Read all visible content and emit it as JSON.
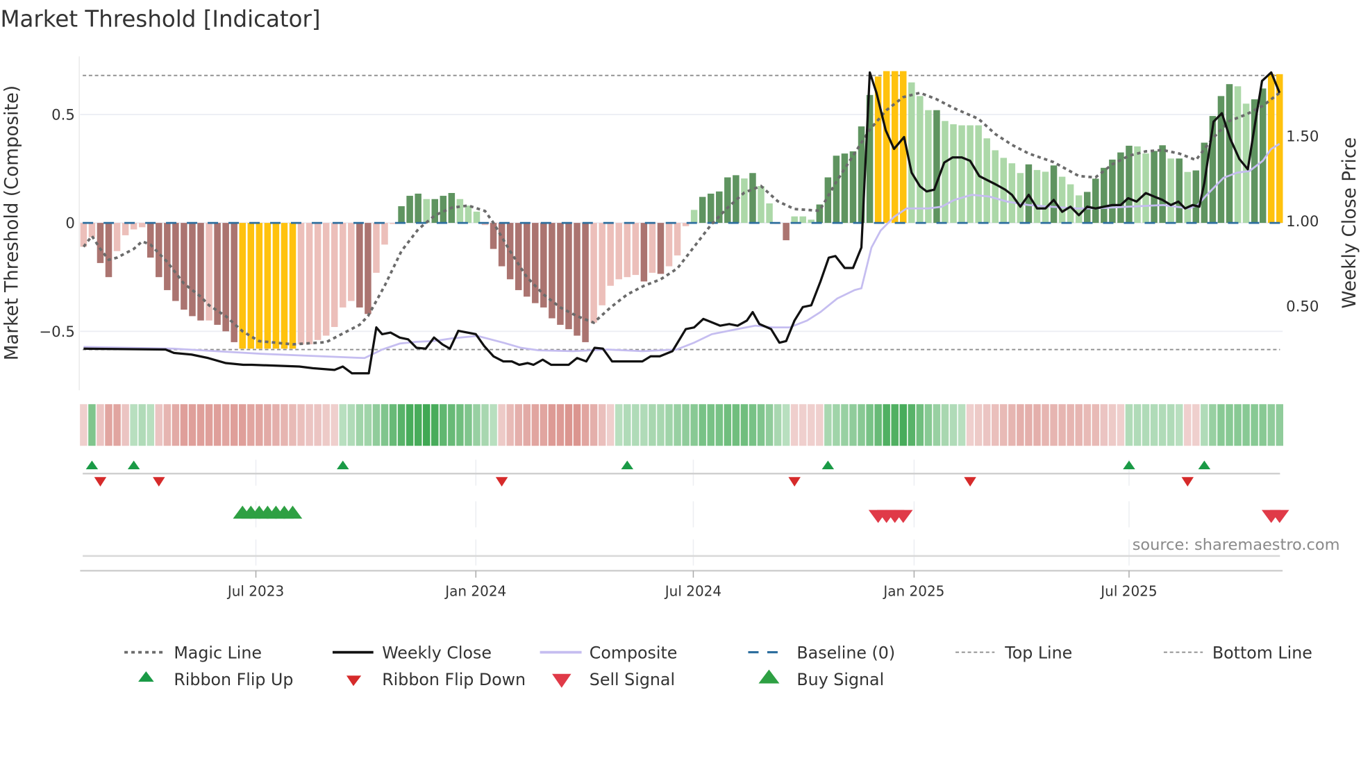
{
  "title": "Market Threshold [Indicator]",
  "source": "source: sharemaestro.com",
  "colors": {
    "bar_neg_strong": "#ab7470",
    "bar_neg_weak": "#ecbfba",
    "bar_pos_strong": "#5f9460",
    "bar_pos_weak": "#acd8a8",
    "bar_extreme": "#ffc20e",
    "magic": "#6b6b6b",
    "close": "#111111",
    "composite": "#c5bdf0",
    "baseline": "#2d6e9e",
    "thresholds": "#8c8c8c",
    "ribbon_pos": "#2ea043",
    "ribbon_neg": "#d0736c",
    "flip_up": "#1a9a46",
    "flip_down": "#d62a2a",
    "buy": "#2ea043",
    "sell": "#e03a48"
  },
  "chart_data": {
    "type": "bar",
    "title": "Market Threshold [Indicator]",
    "ylabel": "Market Threshold (Composite)",
    "y2label": "Weekly Close Price",
    "ylim": [
      -0.772,
      0.768
    ],
    "y2lim": [
      0.0,
      1.96
    ],
    "yticks": [
      {
        "v": 0.5,
        "label": "0.5"
      },
      {
        "v": 0,
        "label": "0"
      },
      {
        "v": -0.5,
        "label": "−0.5"
      }
    ],
    "y2ticks": [
      {
        "v": 1.5,
        "label": "1.50"
      },
      {
        "v": 1.0,
        "label": "1.00"
      },
      {
        "v": 0.5,
        "label": "0.50"
      }
    ],
    "xticks": [
      {
        "week": 20.6,
        "label": "Jul 2023"
      },
      {
        "week": 46.9,
        "label": "Jan 2024"
      },
      {
        "week": 72.9,
        "label": "Jul 2024"
      },
      {
        "week": 99.3,
        "label": "Jan 2025"
      },
      {
        "week": 125,
        "label": "Jul 2025"
      }
    ],
    "top_line": 0.68,
    "bottom_line": -0.584,
    "baseline": 0,
    "composite_bars": [
      -0.11,
      -0.066,
      -0.185,
      -0.25,
      -0.13,
      -0.057,
      -0.03,
      -0.02,
      -0.16,
      -0.25,
      -0.31,
      -0.36,
      -0.4,
      -0.43,
      -0.45,
      -0.45,
      -0.47,
      -0.5,
      -0.55,
      -0.58,
      -0.58,
      -0.58,
      -0.58,
      -0.58,
      -0.58,
      -0.58,
      -0.56,
      -0.56,
      -0.54,
      -0.52,
      -0.48,
      -0.39,
      -0.36,
      -0.39,
      -0.42,
      -0.23,
      -0.1,
      -0.005,
      0.077,
      0.125,
      0.135,
      0.11,
      0.11,
      0.125,
      0.138,
      0.11,
      0.08,
      0.052,
      -0.01,
      -0.12,
      -0.2,
      -0.26,
      -0.31,
      -0.34,
      -0.37,
      -0.39,
      -0.44,
      -0.47,
      -0.49,
      -0.52,
      -0.55,
      -0.46,
      -0.38,
      -0.29,
      -0.26,
      -0.25,
      -0.24,
      -0.27,
      -0.23,
      -0.235,
      -0.2,
      -0.15,
      -0.015,
      0.06,
      0.12,
      0.135,
      0.145,
      0.21,
      0.22,
      0.205,
      0.23,
      0.17,
      0.09,
      -0.005,
      -0.08,
      0.03,
      0.03,
      0.015,
      0.085,
      0.21,
      0.31,
      0.32,
      0.33,
      0.445,
      0.59,
      0.675,
      0.7,
      0.7,
      0.7,
      0.648,
      0.585,
      0.52,
      0.52,
      0.47,
      0.455,
      0.45,
      0.45,
      0.45,
      0.39,
      0.335,
      0.3,
      0.275,
      0.23,
      0.27,
      0.244,
      0.236,
      0.265,
      0.213,
      0.178,
      0.127,
      0.143,
      0.204,
      0.254,
      0.292,
      0.325,
      0.356,
      0.353,
      0.32,
      0.332,
      0.358,
      0.297,
      0.297,
      0.235,
      0.242,
      0.37,
      0.493,
      0.585,
      0.64,
      0.63,
      0.55,
      0.57,
      0.62,
      0.686,
      0.686
    ],
    "bar_tone": "LLDDLLLLDDDDDDDLDDDXXXXXXXLLLLLLLDDLLLDDDLDDDLLLLDDDDDDDDDDDDLLLLLLDLDLLLLDDDDDLDLLLDLLLDDDDDDDXXXXLLLDLLLLLLLLLLDLLDLLLDDDDDDLLDDLDLDDDDDLLDDXX",
    "magic_line": [
      [
        0,
        -0.11
      ],
      [
        1,
        -0.06
      ],
      [
        2,
        -0.12
      ],
      [
        3,
        -0.17
      ],
      [
        4,
        -0.16
      ],
      [
        6,
        -0.12
      ],
      [
        7,
        -0.085
      ],
      [
        8,
        -0.1
      ],
      [
        10,
        -0.18
      ],
      [
        12,
        -0.28
      ],
      [
        14,
        -0.34
      ],
      [
        15,
        -0.38
      ],
      [
        17,
        -0.43
      ],
      [
        19,
        -0.5
      ],
      [
        21,
        -0.545
      ],
      [
        25,
        -0.56
      ],
      [
        29,
        -0.55
      ],
      [
        31,
        -0.51
      ],
      [
        33,
        -0.47
      ],
      [
        34,
        -0.43
      ],
      [
        36,
        -0.29
      ],
      [
        38,
        -0.13
      ],
      [
        40,
        -0.03
      ],
      [
        42,
        0.035
      ],
      [
        44,
        0.07
      ],
      [
        46,
        0.08
      ],
      [
        48,
        0.055
      ],
      [
        49,
        0
      ],
      [
        51,
        -0.13
      ],
      [
        53,
        -0.25
      ],
      [
        55,
        -0.33
      ],
      [
        57,
        -0.39
      ],
      [
        59,
        -0.43
      ],
      [
        61,
        -0.46
      ],
      [
        63,
        -0.39
      ],
      [
        65,
        -0.33
      ],
      [
        67,
        -0.29
      ],
      [
        69,
        -0.26
      ],
      [
        71,
        -0.21
      ],
      [
        73,
        -0.11
      ],
      [
        75,
        -0.01
      ],
      [
        77,
        0.07
      ],
      [
        79,
        0.14
      ],
      [
        81,
        0.17
      ],
      [
        83,
        0.1
      ],
      [
        85,
        0.064
      ],
      [
        88,
        0.056
      ],
      [
        90,
        0.19
      ],
      [
        92,
        0.31
      ],
      [
        94,
        0.43
      ],
      [
        96,
        0.52
      ],
      [
        98,
        0.58
      ],
      [
        100,
        0.6
      ],
      [
        102,
        0.57
      ],
      [
        104,
        0.53
      ],
      [
        107,
        0.48
      ],
      [
        109,
        0.41
      ],
      [
        111,
        0.36
      ],
      [
        113,
        0.32
      ],
      [
        116,
        0.28
      ],
      [
        119,
        0.216
      ],
      [
        121,
        0.21
      ],
      [
        123,
        0.27
      ],
      [
        125,
        0.31
      ],
      [
        127,
        0.33
      ],
      [
        129,
        0.336
      ],
      [
        131,
        0.32
      ],
      [
        133,
        0.29
      ],
      [
        135,
        0.39
      ],
      [
        137,
        0.47
      ],
      [
        139,
        0.5
      ],
      [
        141,
        0.54
      ],
      [
        143,
        0.6
      ]
    ],
    "weekly_close": [
      [
        0,
        0.245
      ],
      [
        9.8,
        0.24
      ],
      [
        10.8,
        0.22
      ],
      [
        12.9,
        0.21
      ],
      [
        14.9,
        0.19
      ],
      [
        17,
        0.16
      ],
      [
        19.1,
        0.15
      ],
      [
        20.1,
        0.15
      ],
      [
        25.8,
        0.14
      ],
      [
        27.4,
        0.13
      ],
      [
        30,
        0.12
      ],
      [
        31,
        0.14
      ],
      [
        32.1,
        0.1
      ],
      [
        34.1,
        0.1
      ],
      [
        35,
        0.37
      ],
      [
        35.7,
        0.33
      ],
      [
        36.7,
        0.34
      ],
      [
        37.8,
        0.31
      ],
      [
        38.8,
        0.3
      ],
      [
        39.8,
        0.25
      ],
      [
        40.9,
        0.245
      ],
      [
        41.9,
        0.31
      ],
      [
        42.9,
        0.27
      ],
      [
        43.8,
        0.245
      ],
      [
        44.8,
        0.35
      ],
      [
        46.9,
        0.33
      ],
      [
        47.9,
        0.26
      ],
      [
        49,
        0.2
      ],
      [
        50.2,
        0.17
      ],
      [
        51.2,
        0.17
      ],
      [
        52.1,
        0.15
      ],
      [
        53.1,
        0.16
      ],
      [
        53.8,
        0.15
      ],
      [
        54.9,
        0.18
      ],
      [
        55.9,
        0.15
      ],
      [
        58,
        0.15
      ],
      [
        59,
        0.19
      ],
      [
        60.1,
        0.17
      ],
      [
        61.1,
        0.25
      ],
      [
        62.1,
        0.245
      ],
      [
        63.2,
        0.17
      ],
      [
        64.5,
        0.17
      ],
      [
        65.6,
        0.17
      ],
      [
        66.8,
        0.17
      ],
      [
        67.8,
        0.2
      ],
      [
        68.9,
        0.2
      ],
      [
        70.4,
        0.23
      ],
      [
        72,
        0.36
      ],
      [
        73,
        0.37
      ],
      [
        74.1,
        0.42
      ],
      [
        75.1,
        0.4
      ],
      [
        76.1,
        0.38
      ],
      [
        77.2,
        0.39
      ],
      [
        78.2,
        0.38
      ],
      [
        79.3,
        0.41
      ],
      [
        80,
        0.46
      ],
      [
        80.8,
        0.39
      ],
      [
        82.2,
        0.36
      ],
      [
        83.2,
        0.28
      ],
      [
        84,
        0.29
      ],
      [
        85,
        0.41
      ],
      [
        86,
        0.49
      ],
      [
        87,
        0.5
      ],
      [
        88.1,
        0.64
      ],
      [
        89.1,
        0.78
      ],
      [
        89.9,
        0.79
      ],
      [
        91,
        0.72
      ],
      [
        92,
        0.72
      ],
      [
        93,
        0.84
      ],
      [
        94,
        1.87
      ],
      [
        94.8,
        1.75
      ],
      [
        95.9,
        1.53
      ],
      [
        96.9,
        1.42
      ],
      [
        98.1,
        1.49
      ],
      [
        99,
        1.28
      ],
      [
        100,
        1.2
      ],
      [
        100.8,
        1.17
      ],
      [
        101.7,
        1.18
      ],
      [
        102.9,
        1.34
      ],
      [
        103.9,
        1.37
      ],
      [
        105,
        1.37
      ],
      [
        106,
        1.35
      ],
      [
        107.1,
        1.26
      ],
      [
        109.1,
        1.21
      ],
      [
        110.2,
        1.18
      ],
      [
        111,
        1.15
      ],
      [
        112,
        1.08
      ],
      [
        113,
        1.15
      ],
      [
        114,
        1.07
      ],
      [
        115,
        1.07
      ],
      [
        116,
        1.12
      ],
      [
        117,
        1.05
      ],
      [
        118,
        1.08
      ],
      [
        119,
        1.03
      ],
      [
        120,
        1.08
      ],
      [
        121,
        1.07
      ],
      [
        122,
        1.08
      ],
      [
        123,
        1.09
      ],
      [
        124,
        1.09
      ],
      [
        124.9,
        1.13
      ],
      [
        125.9,
        1.11
      ],
      [
        127,
        1.16
      ],
      [
        128,
        1.14
      ],
      [
        129,
        1.12
      ],
      [
        130,
        1.09
      ],
      [
        130.9,
        1.11
      ],
      [
        131.7,
        1.07
      ],
      [
        132.6,
        1.09
      ],
      [
        133.4,
        1.08
      ],
      [
        134,
        1.22
      ],
      [
        135.1,
        1.58
      ],
      [
        136.1,
        1.63
      ],
      [
        137.1,
        1.48
      ],
      [
        138.2,
        1.36
      ],
      [
        139.2,
        1.3
      ],
      [
        140.1,
        1.58
      ],
      [
        140.9,
        1.82
      ],
      [
        142,
        1.87
      ],
      [
        143,
        1.75
      ]
    ],
    "composite_line": [
      [
        0,
        0.255
      ],
      [
        10.8,
        0.245
      ],
      [
        21.2,
        0.215
      ],
      [
        33.6,
        0.19
      ],
      [
        35.7,
        0.24
      ],
      [
        37.8,
        0.275
      ],
      [
        39.8,
        0.285
      ],
      [
        41.9,
        0.29
      ],
      [
        44,
        0.305
      ],
      [
        47.1,
        0.32
      ],
      [
        50.2,
        0.28
      ],
      [
        52.3,
        0.25
      ],
      [
        54.4,
        0.235
      ],
      [
        58.5,
        0.23
      ],
      [
        62.7,
        0.24
      ],
      [
        66.8,
        0.23
      ],
      [
        70.9,
        0.24
      ],
      [
        73,
        0.28
      ],
      [
        75.1,
        0.33
      ],
      [
        78.2,
        0.36
      ],
      [
        80.3,
        0.38
      ],
      [
        82.4,
        0.37
      ],
      [
        84.4,
        0.37
      ],
      [
        86.5,
        0.41
      ],
      [
        88.1,
        0.46
      ],
      [
        90.1,
        0.54
      ],
      [
        92.2,
        0.59
      ],
      [
        93,
        0.6
      ],
      [
        94.2,
        0.84
      ],
      [
        95.3,
        0.94
      ],
      [
        96.9,
        1.02
      ],
      [
        98.4,
        1.07
      ],
      [
        101,
        1.07
      ],
      [
        102.6,
        1.08
      ],
      [
        104.1,
        1.12
      ],
      [
        106.2,
        1.15
      ],
      [
        108.3,
        1.14
      ],
      [
        110.4,
        1.11
      ],
      [
        113,
        1.09
      ],
      [
        115.6,
        1.08
      ],
      [
        118.7,
        1.07
      ],
      [
        120.8,
        1.07
      ],
      [
        124.9,
        1.08
      ],
      [
        129.1,
        1.09
      ],
      [
        132.2,
        1.07
      ],
      [
        133.2,
        1.09
      ],
      [
        134.3,
        1.15
      ],
      [
        136.3,
        1.25
      ],
      [
        137.9,
        1.28
      ],
      [
        139.4,
        1.29
      ],
      [
        141,
        1.35
      ],
      [
        142,
        1.42
      ],
      [
        143,
        1.45
      ]
    ],
    "ribbon": [
      -0.2,
      0.55,
      -0.3,
      -0.6,
      -0.6,
      -0.3,
      0.2,
      0.25,
      0.2,
      -0.3,
      -0.45,
      -0.55,
      -0.65,
      -0.65,
      -0.65,
      -0.65,
      -0.65,
      -0.6,
      -0.65,
      -0.65,
      -0.6,
      -0.6,
      -0.55,
      -0.5,
      -0.45,
      -0.4,
      -0.35,
      -0.3,
      -0.3,
      -0.25,
      -0.2,
      0.2,
      0.25,
      0.35,
      0.35,
      0.45,
      0.55,
      0.7,
      0.8,
      0.9,
      0.9,
      0.95,
      0.9,
      0.75,
      0.7,
      0.65,
      0.55,
      0.4,
      0.3,
      0.2,
      -0.25,
      -0.4,
      -0.5,
      -0.55,
      -0.6,
      -0.6,
      -0.7,
      -0.7,
      -0.75,
      -0.75,
      -0.6,
      -0.5,
      -0.35,
      -0.2,
      0.2,
      0.25,
      0.25,
      0.25,
      0.3,
      0.3,
      0.35,
      0.4,
      0.45,
      0.5,
      0.6,
      0.6,
      0.6,
      0.65,
      0.65,
      0.65,
      0.6,
      0.55,
      0.45,
      0.3,
      0.2,
      -0.2,
      -0.2,
      -0.2,
      -0.2,
      0.3,
      0.35,
      0.4,
      0.45,
      0.5,
      0.6,
      0.7,
      0.85,
      0.85,
      0.9,
      0.8,
      0.65,
      0.5,
      0.4,
      0.3,
      0.25,
      0.2,
      -0.2,
      -0.25,
      -0.3,
      -0.35,
      -0.4,
      -0.45,
      -0.5,
      -0.5,
      -0.5,
      -0.45,
      -0.45,
      -0.45,
      -0.45,
      -0.45,
      -0.4,
      -0.4,
      -0.3,
      -0.25,
      -0.2,
      0.25,
      0.25,
      0.25,
      0.25,
      0.25,
      0.25,
      0.2,
      -0.2,
      -0.2,
      0.25,
      0.4,
      0.5,
      0.5,
      0.5,
      0.5,
      0.5,
      0.5,
      0.45,
      0.45
    ],
    "ribbon_flip_up": [
      1,
      6,
      31,
      65,
      89,
      125,
      134
    ],
    "ribbon_flip_down": [
      2,
      9,
      50,
      85,
      106,
      132
    ],
    "buy_signal": [
      19,
      20,
      21,
      22,
      23,
      24,
      25
    ],
    "sell_signal": [
      95,
      96,
      97,
      98,
      142,
      143
    ]
  },
  "legend": {
    "magic": "Magic Line",
    "close": "Weekly Close",
    "composite": "Composite",
    "baseline": "Baseline (0)",
    "top": "Top Line",
    "bottom": "Bottom Line",
    "flip_up": "Ribbon Flip Up",
    "flip_down": "Ribbon Flip Down",
    "sell": "Sell Signal",
    "buy": "Buy Signal"
  }
}
